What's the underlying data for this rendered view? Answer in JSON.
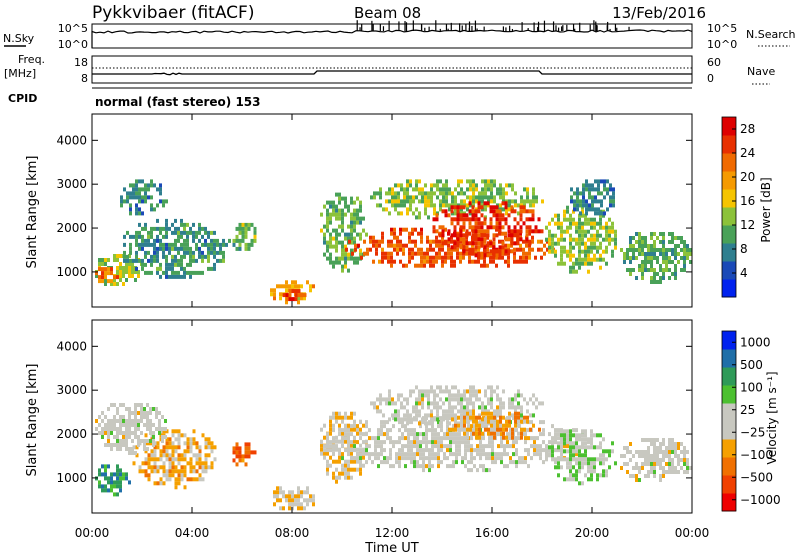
{
  "header": {
    "station": "Pykkvibaer (fitACF)",
    "beam": "Beam 08",
    "date": "13/Feb/2016"
  },
  "strip": {
    "nsky_label": "N.Sky",
    "nsearch_label": "N.Search",
    "ticks_left": [
      "10^5",
      "10^0"
    ],
    "ticks_right": [
      "10^5",
      "10^0"
    ]
  },
  "freq": {
    "label_1": "Freq.",
    "label_2": "[MHz]",
    "nave_label": "Nave",
    "ticks_left": [
      "18",
      "8"
    ],
    "ticks_right": [
      "60",
      "0"
    ]
  },
  "cpid": {
    "label": "CPID",
    "text": "normal (fast stereo) 153"
  },
  "chart_data": [
    {
      "type": "heatmap",
      "name": "power",
      "ylabel": "Slant Range [km]",
      "yticks": [
        "4000",
        "3000",
        "2000",
        "1000"
      ],
      "ylim": [
        200,
        4600
      ],
      "colorbar": {
        "label": "Power [dB]",
        "ticks": [
          "28",
          "24",
          "20",
          "16",
          "12",
          "8",
          "4"
        ],
        "range": [
          0,
          30
        ],
        "colors": [
          "#0022ee",
          "#1a49b7",
          "#2f7f8f",
          "#49a158",
          "#8cc23a",
          "#f5c400",
          "#f59a00",
          "#f06a00",
          "#e83000",
          "#de0000"
        ]
      },
      "regions": [
        {
          "t": [
            0.0,
            2.0
          ],
          "r": [
            700,
            1500
          ],
          "v": 14
        },
        {
          "t": [
            0.0,
            1.0
          ],
          "r": [
            800,
            1200
          ],
          "v": 22
        },
        {
          "t": [
            1.0,
            5.5
          ],
          "r": [
            900,
            2300
          ],
          "v": 9
        },
        {
          "t": [
            1.0,
            3.0
          ],
          "r": [
            2300,
            3200
          ],
          "v": 8
        },
        {
          "t": [
            5.5,
            6.5
          ],
          "r": [
            1500,
            2300
          ],
          "v": 12
        },
        {
          "t": [
            7.0,
            9.0
          ],
          "r": [
            300,
            900
          ],
          "v": 18
        },
        {
          "t": [
            7.5,
            8.5
          ],
          "r": [
            400,
            700
          ],
          "v": 25
        },
        {
          "t": [
            9.0,
            11.0
          ],
          "r": [
            1000,
            2900
          ],
          "v": 12
        },
        {
          "t": [
            11.0,
            18.0
          ],
          "r": [
            2200,
            3200
          ],
          "v": 13
        },
        {
          "t": [
            10.0,
            18.5
          ],
          "r": [
            1100,
            2100
          ],
          "v": 24
        },
        {
          "t": [
            13.5,
            18.0
          ],
          "r": [
            1400,
            2700
          ],
          "v": 26
        },
        {
          "t": [
            18.0,
            21.0
          ],
          "r": [
            1000,
            2600
          ],
          "v": 13
        },
        {
          "t": [
            19.0,
            21.0
          ],
          "r": [
            2300,
            3200
          ],
          "v": 8
        },
        {
          "t": [
            21.0,
            24.0
          ],
          "r": [
            800,
            2000
          ],
          "v": 11
        }
      ]
    },
    {
      "type": "heatmap",
      "name": "velocity",
      "ylabel": "Slant Range [km]",
      "yticks": [
        "4000",
        "3000",
        "2000",
        "1000"
      ],
      "ylim": [
        200,
        4600
      ],
      "xlabel": "Time UT",
      "xticks": [
        "00:00",
        "04:00",
        "08:00",
        "12:00",
        "16:00",
        "20:00",
        "00:00"
      ],
      "xlim": [
        0,
        24
      ],
      "colorbar": {
        "label": "Velocity [m s⁻¹]",
        "ticks": [
          "1000",
          "500",
          "100",
          "25",
          "−25",
          "−100",
          "−500",
          "−1000"
        ],
        "range": [
          -1200,
          1200
        ],
        "colors": [
          "#ee0000",
          "#f04000",
          "#f07000",
          "#f5a000",
          "#c8c8c0",
          "#c8c8c0",
          "#4cc030",
          "#2e9a58",
          "#1f6fa8",
          "#0022ee"
        ]
      },
      "regions": [
        {
          "t": [
            0.0,
            1.5
          ],
          "r": [
            600,
            1400
          ],
          "v": 700
        },
        {
          "t": [
            1.5,
            5.0
          ],
          "r": [
            800,
            2200
          ],
          "v": -300
        },
        {
          "t": [
            0.0,
            3.0
          ],
          "r": [
            1600,
            2800
          ],
          "v": 0
        },
        {
          "t": [
            5.5,
            6.5
          ],
          "r": [
            1300,
            1900
          ],
          "v": -700
        },
        {
          "t": [
            7.0,
            9.0
          ],
          "r": [
            300,
            900
          ],
          "v": -200
        },
        {
          "t": [
            9.0,
            11.0
          ],
          "r": [
            900,
            2600
          ],
          "v": -150
        },
        {
          "t": [
            9.0,
            20.0
          ],
          "r": [
            1200,
            2500
          ],
          "v": 0
        },
        {
          "t": [
            11.0,
            18.0
          ],
          "r": [
            2200,
            3200
          ],
          "v": 0
        },
        {
          "t": [
            14.0,
            18.0
          ],
          "r": [
            1900,
            2600
          ],
          "v": -400
        },
        {
          "t": [
            18.0,
            21.0
          ],
          "r": [
            900,
            2200
          ],
          "v": 200
        },
        {
          "t": [
            21.0,
            24.0
          ],
          "r": [
            900,
            2000
          ],
          "v": 0
        }
      ]
    }
  ]
}
